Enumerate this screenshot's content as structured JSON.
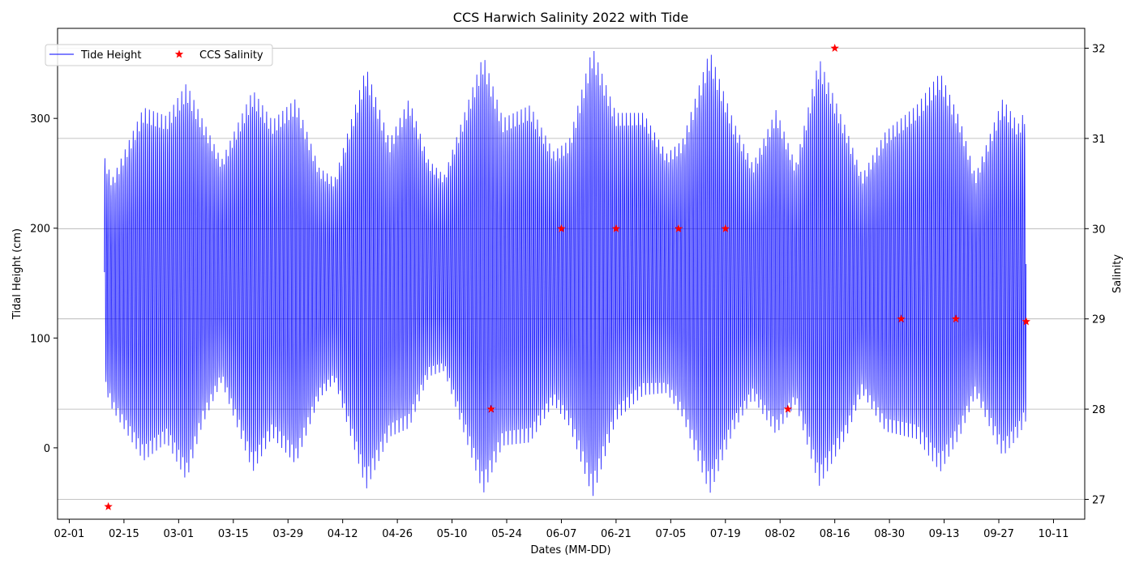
{
  "chart_data": {
    "type": "line",
    "title": "CCS Harwich Salinity 2022 with Tide",
    "xlabel": "Dates (MM-DD)",
    "ylabel": "Tidal Height (cm)",
    "y2label": "Salinity",
    "x_axis": {
      "type": "date",
      "range": [
        "2022-01-29",
        "2022-10-19"
      ]
    },
    "y_left": {
      "range": [
        -65,
        382
      ],
      "ticks": [
        0,
        100,
        200,
        300
      ]
    },
    "y_right": {
      "range": [
        26.78,
        32.22
      ],
      "ticks": [
        27,
        28,
        29,
        30,
        31,
        32
      ]
    },
    "x_tick_labels": [
      "02-01",
      "02-15",
      "03-01",
      "03-15",
      "03-29",
      "04-12",
      "04-26",
      "05-10",
      "05-24",
      "06-07",
      "06-21",
      "07-05",
      "07-19",
      "08-02",
      "08-16",
      "08-30",
      "09-13",
      "09-27",
      "10-11"
    ],
    "x_tick_dates": [
      "2022-02-01",
      "2022-02-15",
      "2022-03-01",
      "2022-03-15",
      "2022-03-29",
      "2022-04-12",
      "2022-04-26",
      "2022-05-10",
      "2022-05-24",
      "2022-06-07",
      "2022-06-21",
      "2022-07-05",
      "2022-07-19",
      "2022-08-02",
      "2022-08-16",
      "2022-08-30",
      "2022-09-13",
      "2022-09-27",
      "2022-10-11"
    ],
    "grid": "horizontal lines at right-axis ticks",
    "legend": {
      "placement": "upper-left",
      "entries": [
        "Tide Height",
        "CCS Salinity"
      ]
    },
    "series": [
      {
        "name": "Tide Height",
        "axis": "left",
        "style": "line",
        "color": "#0000ff",
        "time_range": [
          "2022-02-10",
          "2022-10-04"
        ],
        "semidiurnal_period_hours": 12.42,
        "mean_level_cm": 146,
        "envelope_high_cm": [
          [
            "2022-02-10",
            265
          ],
          [
            "2022-02-12",
            245
          ],
          [
            "2022-02-20",
            310
          ],
          [
            "2022-02-26",
            302
          ],
          [
            "2022-03-03",
            332
          ],
          [
            "2022-03-07",
            300
          ],
          [
            "2022-03-12",
            262
          ],
          [
            "2022-03-20",
            326
          ],
          [
            "2022-03-25",
            298
          ],
          [
            "2022-03-31",
            318
          ],
          [
            "2022-04-06",
            255
          ],
          [
            "2022-04-10",
            245
          ],
          [
            "2022-04-18",
            347
          ],
          [
            "2022-04-24",
            280
          ],
          [
            "2022-04-29",
            318
          ],
          [
            "2022-05-04",
            262
          ],
          [
            "2022-05-08",
            248
          ],
          [
            "2022-05-18",
            358
          ],
          [
            "2022-05-23",
            300
          ],
          [
            "2022-05-30",
            312
          ],
          [
            "2022-06-05",
            270
          ],
          [
            "2022-06-09",
            280
          ],
          [
            "2022-06-15",
            365
          ],
          [
            "2022-06-21",
            305
          ],
          [
            "2022-06-28",
            305
          ],
          [
            "2022-07-04",
            268
          ],
          [
            "2022-07-08",
            280
          ],
          [
            "2022-07-15",
            362
          ],
          [
            "2022-07-21",
            298
          ],
          [
            "2022-07-26",
            258
          ],
          [
            "2022-08-01",
            308
          ],
          [
            "2022-08-06",
            258
          ],
          [
            "2022-08-12",
            355
          ],
          [
            "2022-08-19",
            290
          ],
          [
            "2022-08-23",
            248
          ],
          [
            "2022-08-29",
            288
          ],
          [
            "2022-09-06",
            312
          ],
          [
            "2022-09-12",
            342
          ],
          [
            "2022-09-17",
            300
          ],
          [
            "2022-09-21",
            248
          ],
          [
            "2022-09-28",
            318
          ],
          [
            "2022-10-02",
            295
          ],
          [
            "2022-10-04",
            310
          ]
        ],
        "envelope_low_cm": [
          [
            "2022-02-10",
            55
          ],
          [
            "2022-02-12",
            35
          ],
          [
            "2022-02-20",
            -12
          ],
          [
            "2022-02-26",
            5
          ],
          [
            "2022-03-03",
            -30
          ],
          [
            "2022-03-07",
            20
          ],
          [
            "2022-03-12",
            60
          ],
          [
            "2022-03-20",
            -22
          ],
          [
            "2022-03-25",
            10
          ],
          [
            "2022-03-31",
            -15
          ],
          [
            "2022-04-06",
            45
          ],
          [
            "2022-04-10",
            60
          ],
          [
            "2022-04-18",
            -38
          ],
          [
            "2022-04-24",
            10
          ],
          [
            "2022-04-29",
            18
          ],
          [
            "2022-05-04",
            65
          ],
          [
            "2022-05-08",
            70
          ],
          [
            "2022-05-18",
            -42
          ],
          [
            "2022-05-23",
            2
          ],
          [
            "2022-05-30",
            5
          ],
          [
            "2022-06-05",
            40
          ],
          [
            "2022-06-09",
            20
          ],
          [
            "2022-06-15",
            -45
          ],
          [
            "2022-06-21",
            25
          ],
          [
            "2022-06-28",
            48
          ],
          [
            "2022-07-04",
            50
          ],
          [
            "2022-07-08",
            28
          ],
          [
            "2022-07-15",
            -42
          ],
          [
            "2022-07-21",
            15
          ],
          [
            "2022-07-26",
            45
          ],
          [
            "2022-08-01",
            12
          ],
          [
            "2022-08-06",
            40
          ],
          [
            "2022-08-12",
            -35
          ],
          [
            "2022-08-19",
            10
          ],
          [
            "2022-08-23",
            50
          ],
          [
            "2022-08-29",
            15
          ],
          [
            "2022-09-06",
            8
          ],
          [
            "2022-09-12",
            -22
          ],
          [
            "2022-09-17",
            10
          ],
          [
            "2022-09-21",
            48
          ],
          [
            "2022-09-28",
            -8
          ],
          [
            "2022-10-02",
            10
          ],
          [
            "2022-10-04",
            25
          ]
        ]
      },
      {
        "name": "CCS Salinity",
        "axis": "right",
        "style": "star-marker",
        "color": "#ff0000",
        "points": [
          {
            "x": "2022-02-11",
            "y": 26.92
          },
          {
            "x": "2022-05-20",
            "y": 28.0
          },
          {
            "x": "2022-06-07",
            "y": 30.0
          },
          {
            "x": "2022-06-21",
            "y": 30.0
          },
          {
            "x": "2022-07-07",
            "y": 30.0
          },
          {
            "x": "2022-07-19",
            "y": 30.0
          },
          {
            "x": "2022-08-04",
            "y": 28.0
          },
          {
            "x": "2022-08-16",
            "y": 32.0
          },
          {
            "x": "2022-09-02",
            "y": 29.0
          },
          {
            "x": "2022-09-16",
            "y": 29.0
          },
          {
            "x": "2022-10-04",
            "y": 28.97
          }
        ]
      }
    ]
  }
}
